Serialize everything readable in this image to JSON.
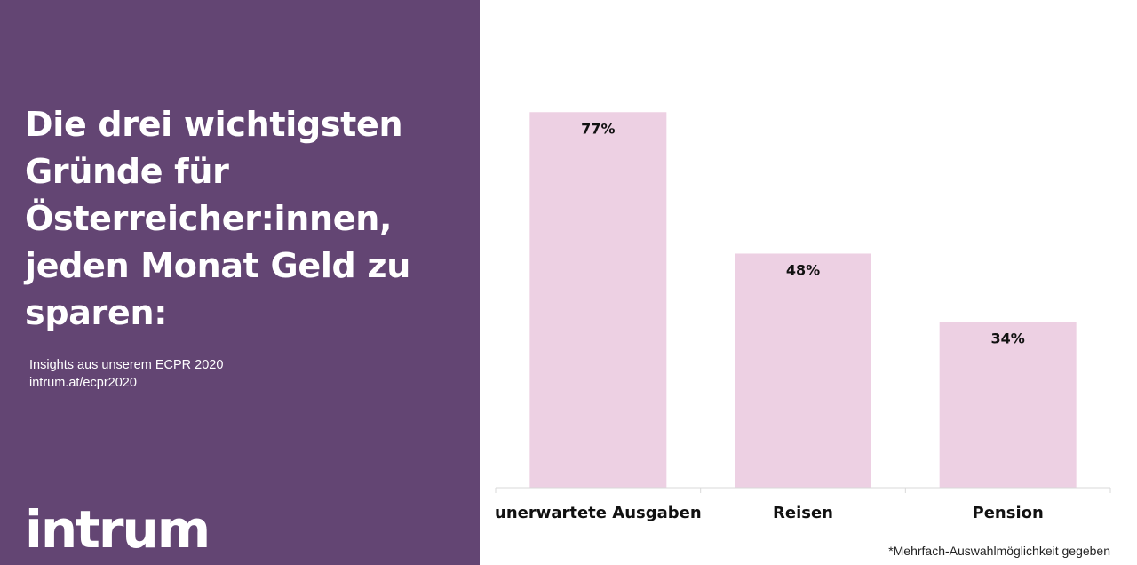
{
  "headline": "Die drei wichtigsten Gründe für Österreicher:innen, jeden Monat Geld zu sparen:",
  "source": {
    "line1": "Insights aus unserem ECPR 2020",
    "line2": "intrum.at/ecpr2020"
  },
  "logo_text": "intrum",
  "footnote": "*Mehrfach-Auswahlmöglichkeit gegeben",
  "colors": {
    "panel": "#634573",
    "bar": "#edd0e3",
    "text": "#111111"
  },
  "chart_data": {
    "type": "bar",
    "categories": [
      "unerwartete Ausgaben",
      "Reisen",
      "Pension"
    ],
    "values": [
      77,
      48,
      34
    ],
    "data_labels": [
      "77%",
      "48%",
      "34%"
    ],
    "ylim": [
      0,
      100
    ],
    "grid": false,
    "legend": "none"
  }
}
